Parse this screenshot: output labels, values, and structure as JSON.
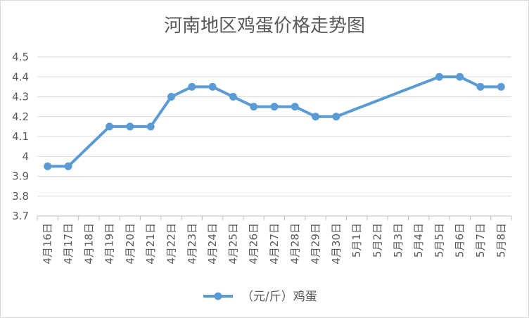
{
  "chart_data": {
    "type": "line",
    "title": "河南地区鸡蛋价格走势图",
    "xlabel": "",
    "ylabel": "",
    "ylim": [
      3.7,
      4.5
    ],
    "ytick_step": 0.1,
    "yticks": [
      "3.7",
      "3.8",
      "3.9",
      "4",
      "4.1",
      "4.2",
      "4.3",
      "4.4",
      "4.5"
    ],
    "grid": true,
    "legend_position": "bottom",
    "categories": [
      "4月16日",
      "4月17日",
      "4月18日",
      "4月19日",
      "4月20日",
      "4月21日",
      "4月22日",
      "4月23日",
      "4月24日",
      "4月25日",
      "4月26日",
      "4月27日",
      "4月28日",
      "4月29日",
      "4月30日",
      "5月1日",
      "5月2日",
      "5月3日",
      "5月4日",
      "5月5日",
      "5月6日",
      "5月7日",
      "5月8日"
    ],
    "series": [
      {
        "name": "（元/斤）鸡蛋",
        "color": "#5b9bd5",
        "values": [
          3.95,
          3.95,
          null,
          4.15,
          4.15,
          4.15,
          4.3,
          4.35,
          4.35,
          4.3,
          4.25,
          4.25,
          4.25,
          4.2,
          4.2,
          null,
          null,
          null,
          null,
          4.4,
          4.4,
          4.35,
          4.35
        ]
      }
    ]
  }
}
